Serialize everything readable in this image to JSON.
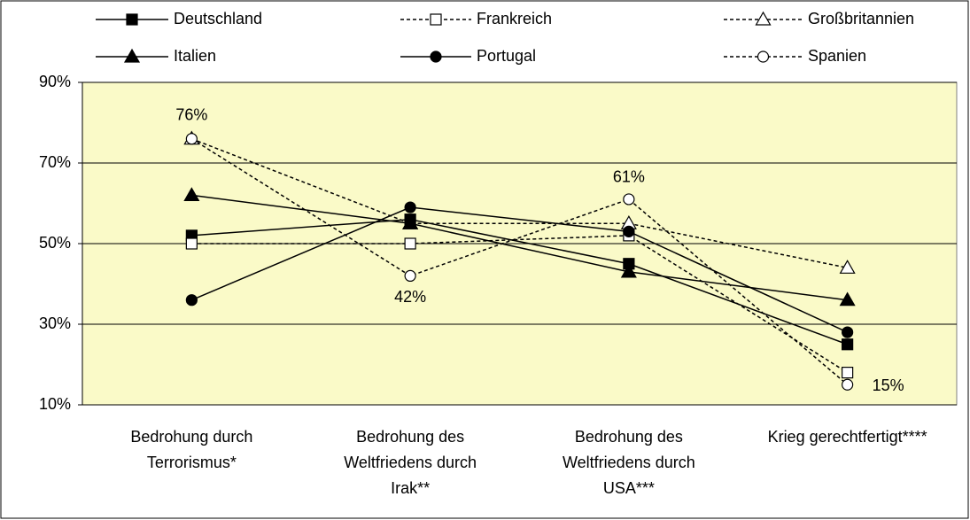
{
  "chart_data": {
    "type": "line",
    "categories": [
      [
        "Bedrohung durch",
        "Terrorismus*"
      ],
      [
        "Bedrohung des",
        "Weltfriedens durch",
        "Irak**"
      ],
      [
        "Bedrohung des",
        "Weltfriedens durch",
        "USA***"
      ],
      [
        "Krieg gerechtfertigt****"
      ]
    ],
    "series": [
      {
        "name": "Deutschland",
        "color": "#000000",
        "dashed": false,
        "marker": "square",
        "filled": true,
        "values": [
          52,
          56,
          45,
          25
        ]
      },
      {
        "name": "Frankreich",
        "color": "#000000",
        "dashed": true,
        "marker": "square",
        "filled": false,
        "values": [
          50,
          50,
          52,
          18
        ]
      },
      {
        "name": "Großbritannien",
        "color": "#000000",
        "dashed": true,
        "marker": "triangle",
        "filled": false,
        "values": [
          76,
          55,
          55,
          44
        ]
      },
      {
        "name": "Italien",
        "color": "#000000",
        "dashed": false,
        "marker": "triangle",
        "filled": true,
        "values": [
          62,
          55,
          43,
          36
        ]
      },
      {
        "name": "Portugal",
        "color": "#000000",
        "dashed": false,
        "marker": "circle",
        "filled": true,
        "values": [
          36,
          59,
          53,
          28
        ]
      },
      {
        "name": "Spanien",
        "color": "#000000",
        "dashed": true,
        "marker": "circle",
        "filled": false,
        "values": [
          76,
          42,
          61,
          15
        ],
        "value_labels": [
          "76%",
          "42%",
          "61%",
          "15%"
        ]
      }
    ],
    "ylim": [
      10,
      90
    ],
    "yticks": [
      {
        "value": 10,
        "label": "10%"
      },
      {
        "value": 30,
        "label": "30%"
      },
      {
        "value": 50,
        "label": "50%"
      },
      {
        "value": 70,
        "label": "70%"
      },
      {
        "value": 90,
        "label": "90%"
      }
    ],
    "grid": true,
    "plot_background": "#fafac8",
    "legend": "top"
  }
}
